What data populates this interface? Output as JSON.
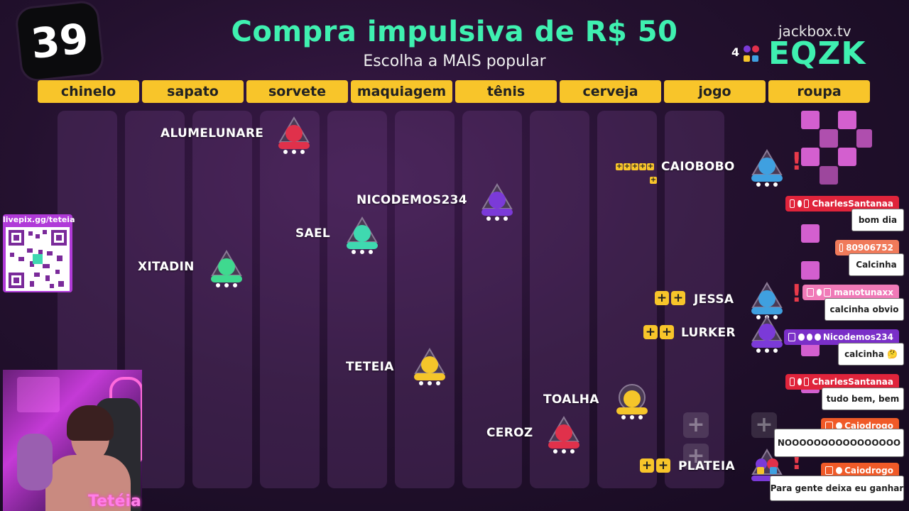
{
  "timer": "39",
  "title": "Compra impulsiva de R$ 50",
  "subtitle": "Escolha a MAIS popular",
  "jackbox": {
    "site": "jackbox.tv",
    "players_count": "4",
    "room_code": "EQZK"
  },
  "categories": [
    "chinelo",
    "sapato",
    "sorvete",
    "maquiagem",
    "tênis",
    "cerveja",
    "jogo",
    "roupa"
  ],
  "players": [
    {
      "name": "ALUMELUNARE",
      "color": "#e0314b"
    },
    {
      "name": "NICODEMOS234",
      "color": "#7b3ad8"
    },
    {
      "name": "SAEL",
      "color": "#3fd9b0"
    },
    {
      "name": "XITADIN",
      "color": "#3fd98f"
    },
    {
      "name": "TETEIA",
      "color": "#f5c52a"
    },
    {
      "name": "TOALHA",
      "color": "#f5c52a"
    },
    {
      "name": "CEROZ",
      "color": "#e0314b"
    }
  ],
  "right_players": [
    {
      "name": "CAIOBOBO",
      "color": "#3fa0e0"
    },
    {
      "name": "JESSA",
      "color": "#3fa0e0"
    },
    {
      "name": "LURKER",
      "color": "#7b3ad8"
    },
    {
      "name": "PLATEIA",
      "color": "#7b3ad8"
    }
  ],
  "chat": [
    {
      "user": "CharlesSantanaa",
      "message": "bom dia",
      "color": "#e0243b"
    },
    {
      "user": "80906752",
      "message": "Calcinha",
      "color": "#f07a5a"
    },
    {
      "user": "manotunaxx",
      "message": "calcinha obvio",
      "color": "#f07ab8"
    },
    {
      "user": "Nicodemos234",
      "message": "calcinha 🤔",
      "color": "#7a2fc8"
    },
    {
      "user": "CharlesSantanaa",
      "message": "tudo bem, bem",
      "color": "#e0243b"
    },
    {
      "user": "Caiodrogo",
      "message": "NOOOOOOOOOOOOOOOO",
      "color": "#f05a28"
    },
    {
      "user": "Caiodrogo",
      "message": "Para gente deixa eu ganhar",
      "color": "#f05a28"
    }
  ],
  "qr": {
    "label": "livepix.gg/teteia"
  },
  "streamer": {
    "name": "Tetéia"
  }
}
